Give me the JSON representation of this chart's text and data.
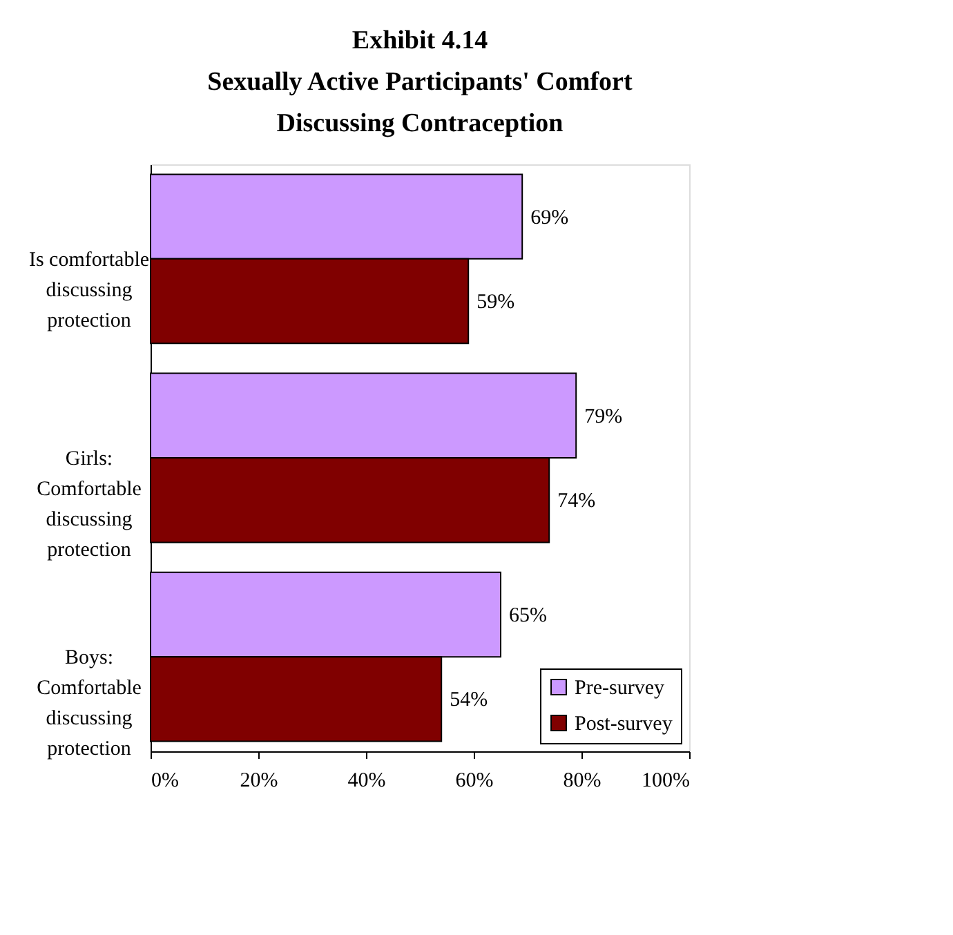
{
  "chart_data": {
    "type": "bar",
    "orientation": "horizontal",
    "title": [
      "Exhibit 4.14",
      "Sexually Active Participants' Comfort",
      "Discussing Contraception"
    ],
    "categories": [
      "Is comfortable discussing protection",
      "Girls: Comfortable discussing protection",
      "Boys: Comfortable discussing protection"
    ],
    "series": [
      {
        "name": "Pre-survey",
        "color": "#cc99ff",
        "values": [
          69,
          79,
          65
        ],
        "value_labels": [
          "69%",
          "79%",
          "65%"
        ]
      },
      {
        "name": "Post-survey",
        "color": "#800000",
        "values": [
          59,
          74,
          54
        ],
        "value_labels": [
          "59%",
          "74%",
          "54%"
        ]
      }
    ],
    "xlim": [
      0,
      100
    ],
    "xticks": [
      {
        "value": 0,
        "label": "0%"
      },
      {
        "value": 20,
        "label": "20%"
      },
      {
        "value": 40,
        "label": "40%"
      },
      {
        "value": 60,
        "label": "60%"
      },
      {
        "value": 80,
        "label": "80%"
      },
      {
        "value": 100,
        "label": "100%"
      }
    ],
    "grid": false,
    "legend": "bottom right"
  }
}
